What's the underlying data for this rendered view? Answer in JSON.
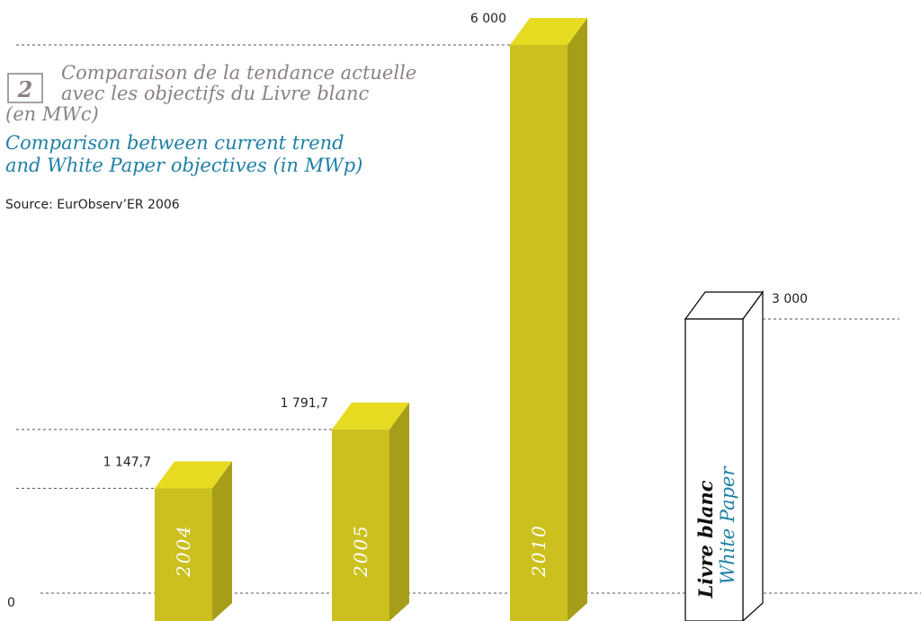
{
  "chart_data": {
    "type": "bar3d",
    "number": "2",
    "title_fr": [
      "Comparaison de la tendance actuelle",
      "avec les objectifs du Livre blanc",
      "(en MWc)"
    ],
    "title_en": [
      "Comparison between current trend",
      "and White Paper objectives (in MWp)"
    ],
    "source": "Source: EurObserv’ER 2006",
    "categories": [
      "2004",
      "2005",
      "2010",
      null
    ],
    "values": [
      1147.7,
      1791.7,
      6000,
      3000
    ],
    "value_labels": [
      "1 147,7",
      "1 791,7",
      "6 000",
      "3 000"
    ],
    "colors": [
      "#cbc01e",
      "#cbc01e",
      "#cbc01e",
      "#ffffff"
    ],
    "white_paper_label": [
      "Livre blanc",
      "White Paper"
    ],
    "ylim": [
      0,
      6000
    ],
    "yticks": [
      0
    ]
  }
}
